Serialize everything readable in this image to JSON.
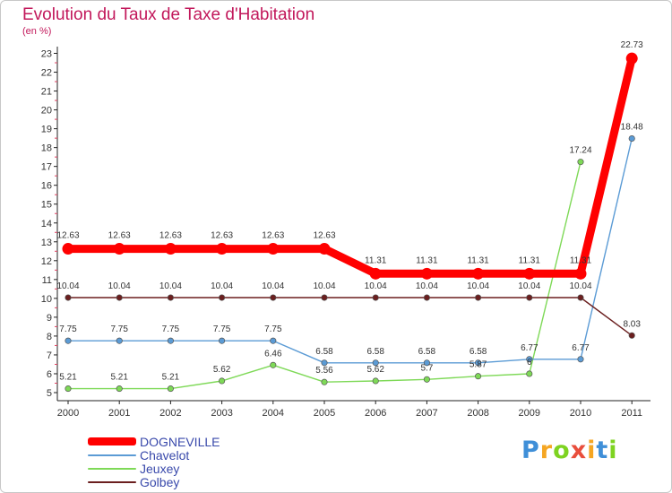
{
  "chart_data": {
    "type": "line",
    "title": "Evolution du Taux de Taxe d'Habitation",
    "subtitle": "(en %)",
    "xlabel": "",
    "ylabel": "",
    "x": [
      "2000",
      "2001",
      "2002",
      "2003",
      "2004",
      "2005",
      "2006",
      "2007",
      "2008",
      "2009",
      "2010",
      "2011"
    ],
    "yticks": [
      "5",
      "6",
      "7",
      "8",
      "9",
      "10",
      "11",
      "12",
      "13",
      "14",
      "15",
      "16",
      "17",
      "18",
      "19",
      "20",
      "21",
      "22",
      "23"
    ],
    "ylim": [
      5,
      23
    ],
    "grid": "none",
    "legend_position": "bottom-left",
    "series": [
      {
        "name": "DOGNEVILLE",
        "color": "#ff0000",
        "style": "thick",
        "values": [
          12.63,
          12.63,
          12.63,
          12.63,
          12.63,
          12.63,
          11.31,
          11.31,
          11.31,
          11.31,
          11.31,
          22.73
        ],
        "labels": [
          "12.63",
          "12.63",
          "12.63",
          "12.63",
          "12.63",
          "12.63",
          "11.31",
          "11.31",
          "11.31",
          "11.31",
          "11.31",
          "22.73"
        ]
      },
      {
        "name": "Chavelot",
        "color": "#5b9bd5",
        "style": "thin",
        "values": [
          7.75,
          7.75,
          7.75,
          7.75,
          7.75,
          6.58,
          6.58,
          6.58,
          6.58,
          6.77,
          6.77,
          18.48
        ],
        "labels": [
          "7.75",
          "7.75",
          "7.75",
          "7.75",
          "7.75",
          "6.58",
          "6.58",
          "6.58",
          "6.58",
          "6.77",
          "6.77",
          "18.48"
        ]
      },
      {
        "name": "Jeuxey",
        "color": "#7ed957",
        "style": "thin",
        "values": [
          5.21,
          5.21,
          5.21,
          5.62,
          6.46,
          5.56,
          5.62,
          5.7,
          5.87,
          6.0,
          17.24,
          null
        ],
        "labels": [
          "5.21",
          "5.21",
          "5.21",
          "5.62",
          "6.46",
          "5.56",
          "5.62",
          "5.7",
          "5.87",
          "6",
          "17.24",
          null
        ]
      },
      {
        "name": "Golbey",
        "color": "#6b1f1f",
        "style": "thin",
        "values": [
          10.04,
          10.04,
          10.04,
          10.04,
          10.04,
          10.04,
          10.04,
          10.04,
          10.04,
          10.04,
          10.04,
          8.03
        ],
        "labels": [
          "10.04",
          "10.04",
          "10.04",
          "10.04",
          "10.04",
          "10.04",
          "10.04",
          "10.04",
          "10.04",
          "10.04",
          "10.04",
          "8.03"
        ]
      }
    ]
  },
  "logo": {
    "letters": [
      "P",
      "r",
      "o",
      "x",
      "i",
      "t",
      "i"
    ],
    "colors": [
      "#3f8fd8",
      "#f5a623",
      "#7ed321",
      "#e94e3c",
      "#f5a623",
      "#3f8fd8",
      "#7ed321"
    ]
  }
}
